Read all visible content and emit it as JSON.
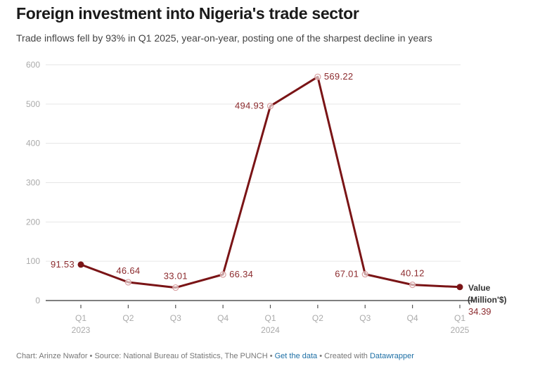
{
  "header": {
    "title": "Foreign investment into Nigeria's trade sector",
    "subtitle": "Trade inflows fell by 93% in Q1 2025, year-on-year, posting one of the sharpest decline in years"
  },
  "footer": {
    "chart_by": "Chart: Arinze Nwafor",
    "source": "Source: National Bureau of Statistics, The PUNCH",
    "get_data": "Get the data",
    "created_with": "Created with",
    "datawrapper": "Datawrapper",
    "separator": " • "
  },
  "colors": {
    "line": "#7a1416",
    "label": "#8c2b2e",
    "grid": "#e6e6e6",
    "axis": "#333333",
    "tick_text": "#aaaaaa"
  },
  "chart_data": {
    "type": "line",
    "title": "Foreign investment into Nigeria's trade sector",
    "subtitle": "Trade inflows fell by 93% in Q1 2025, year-on-year, posting one of the sharpest decline in years",
    "xlabel": "",
    "ylabel": "",
    "ylim": [
      0,
      600
    ],
    "yticks": [
      0,
      100,
      200,
      300,
      400,
      500,
      600
    ],
    "grid": true,
    "categories": [
      {
        "q": "Q1",
        "year": "2023"
      },
      {
        "q": "Q2",
        "year": ""
      },
      {
        "q": "Q3",
        "year": ""
      },
      {
        "q": "Q4",
        "year": ""
      },
      {
        "q": "Q1",
        "year": "2024"
      },
      {
        "q": "Q2",
        "year": ""
      },
      {
        "q": "Q3",
        "year": ""
      },
      {
        "q": "Q4",
        "year": ""
      },
      {
        "q": "Q1",
        "year": "2025"
      }
    ],
    "series": [
      {
        "name": "Value (Million'$)",
        "name_line1": "Value",
        "name_line2": "(Million'$)",
        "values": [
          91.53,
          46.64,
          33.01,
          66.34,
          494.93,
          569.22,
          67.01,
          40.12,
          34.39
        ],
        "labels": [
          "91.53",
          "46.64",
          "33.01",
          "66.34",
          "494.93",
          "569.22",
          "67.01",
          "40.12",
          "34.39"
        ]
      }
    ]
  }
}
